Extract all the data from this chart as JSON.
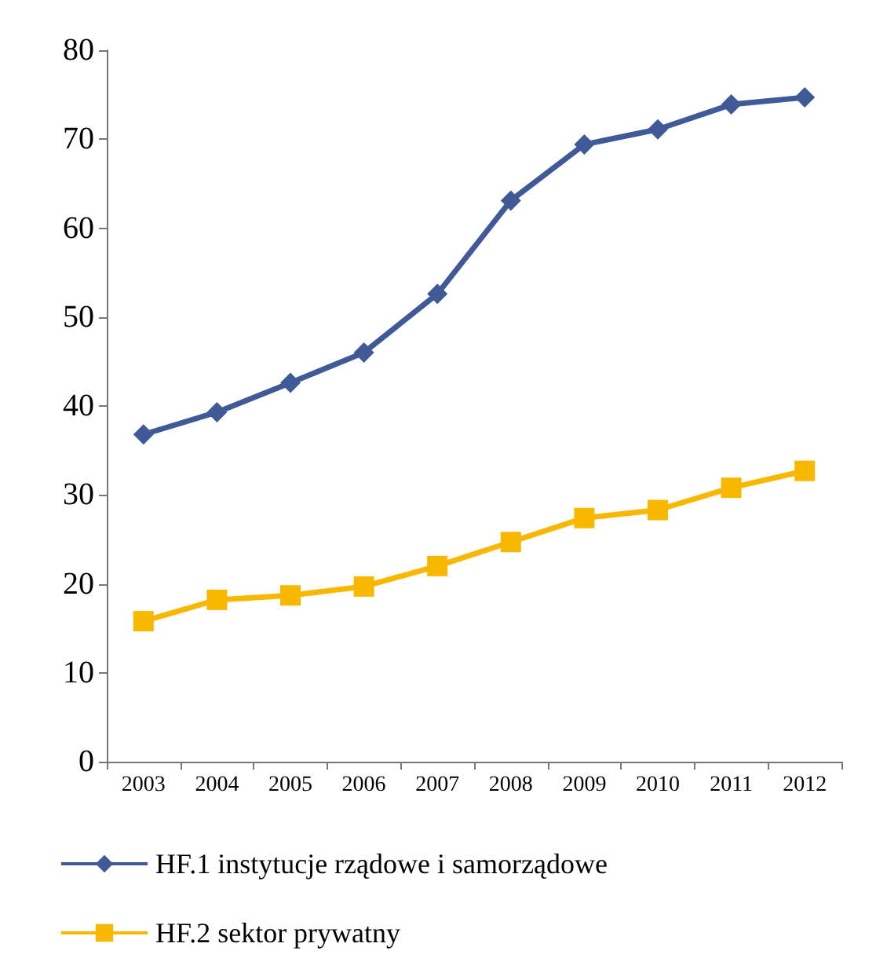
{
  "chart_data": {
    "type": "line",
    "categories": [
      "2003",
      "2004",
      "2005",
      "2006",
      "2007",
      "2008",
      "2009",
      "2010",
      "2011",
      "2012"
    ],
    "series": [
      {
        "name": "HF.1 instytucje rządowe i samorządowe",
        "color": "#3f5a96",
        "marker": "diamond",
        "values": [
          36.8,
          39.3,
          42.6,
          46.0,
          52.6,
          63.1,
          69.4,
          71.1,
          73.9,
          74.7
        ]
      },
      {
        "name": "HF.2 sektor prywatny",
        "color": "#f9b800",
        "marker": "square",
        "values": [
          15.8,
          18.2,
          18.7,
          19.7,
          22.0,
          24.7,
          27.4,
          28.3,
          30.8,
          32.7
        ]
      }
    ],
    "ylim": [
      0,
      80
    ],
    "yticks": [
      0,
      10,
      20,
      30,
      40,
      50,
      60,
      70,
      80
    ],
    "grid": false,
    "legend": "bottom",
    "line_style": "solid"
  }
}
